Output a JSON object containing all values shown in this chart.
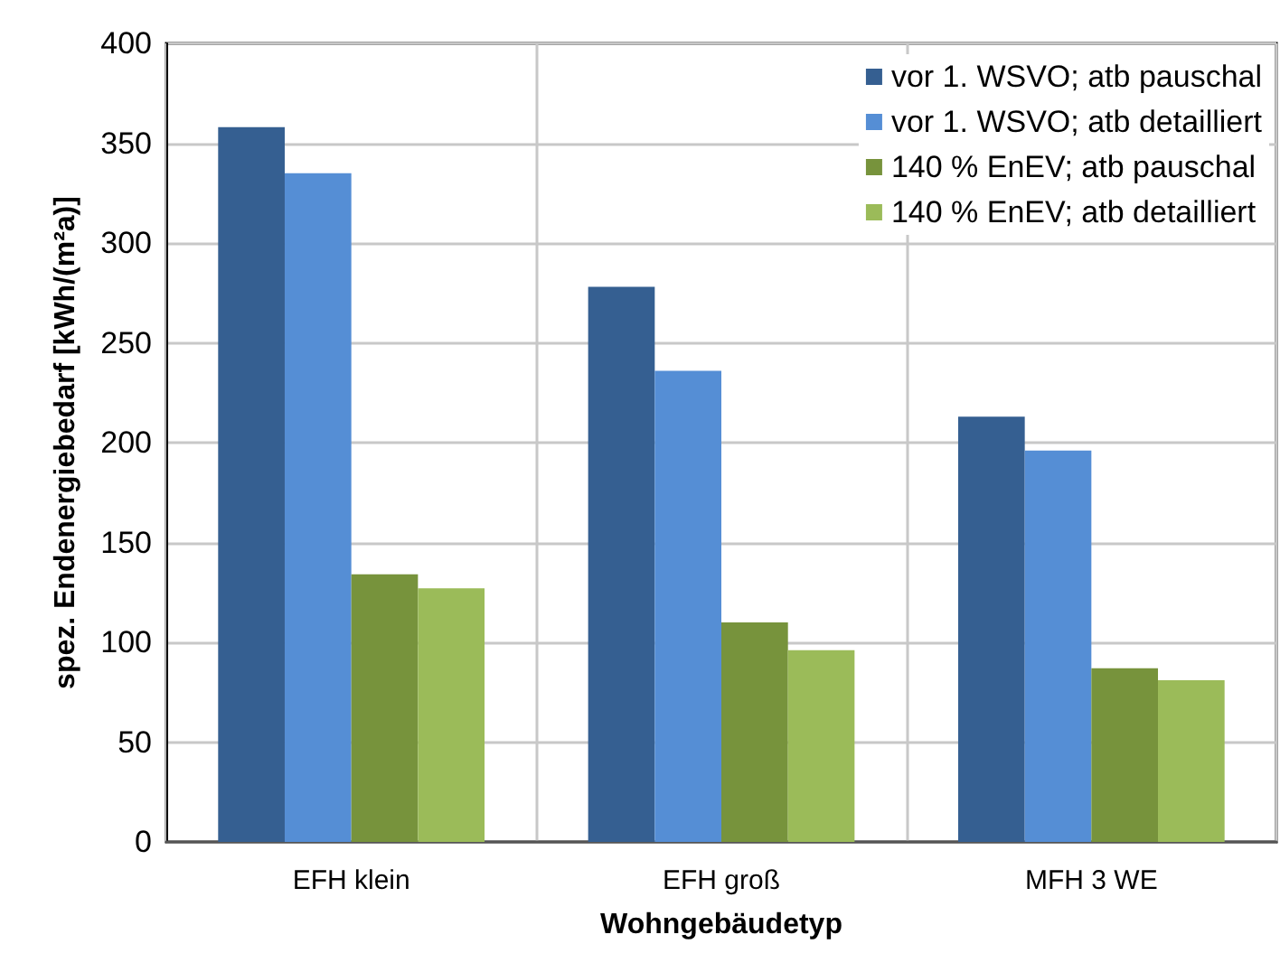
{
  "chart_data": {
    "type": "bar",
    "xlabel": "Wohngebäudetyp",
    "ylabel": "spez. Endenergiebedarf [kWh/(m²a)]",
    "categories": [
      "EFH klein",
      "EFH groß",
      "MFH 3 WE"
    ],
    "series": [
      {
        "name": "vor 1. WSVO; atb pauschal",
        "color": "#355f91",
        "values": [
          358,
          278,
          213
        ]
      },
      {
        "name": "vor 1. WSVO; atb detailliert",
        "color": "#558ed5",
        "values": [
          335,
          236,
          196
        ]
      },
      {
        "name": "140 % EnEV; atb pauschal",
        "color": "#77933c",
        "values": [
          134,
          110,
          87
        ]
      },
      {
        "name": "140 % EnEV; atb detailliert",
        "color": "#9bbb59",
        "values": [
          127,
          96,
          81
        ]
      }
    ],
    "ylim": [
      0,
      400
    ],
    "yticks": [
      0,
      50,
      100,
      150,
      200,
      250,
      300,
      350,
      400
    ],
    "grid": true,
    "legend": "top right"
  }
}
